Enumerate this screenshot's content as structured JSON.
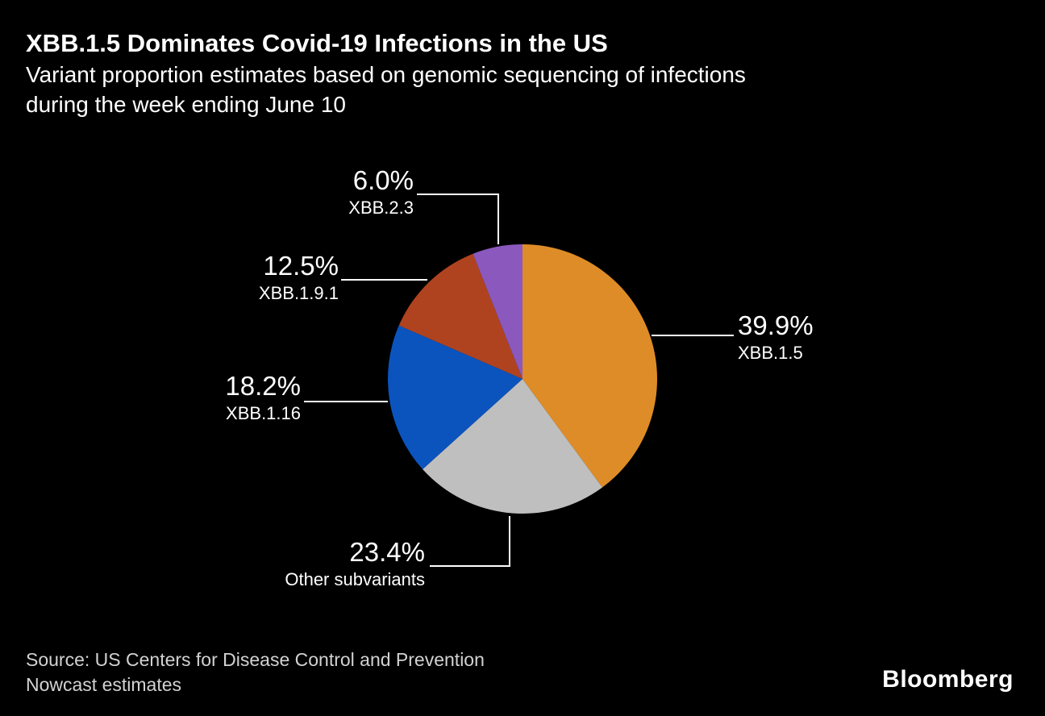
{
  "header": {
    "title": "XBB.1.5 Dominates Covid-19 Infections in the US",
    "subtitle_line1": "Variant proportion estimates based on genomic sequencing of infections",
    "subtitle_line2": "during the week ending June 10"
  },
  "chart_data": {
    "type": "pie",
    "title": "XBB.1.5 Dominates Covid-19 Infections in the US",
    "subtitle": "Variant proportion estimates based on genomic sequencing of infections during the week ending June 10",
    "unit": "%",
    "start_angle_deg": 0,
    "direction": "clockwise",
    "total": 100.0,
    "slices": [
      {
        "name": "XBB.1.5",
        "value": 39.9,
        "pct_label": "39.9%",
        "color": "#DE8C27"
      },
      {
        "name": "Other subvariants",
        "value": 23.4,
        "pct_label": "23.4%",
        "color": "#BFBFBF"
      },
      {
        "name": "XBB.1.16",
        "value": 18.2,
        "pct_label": "18.2%",
        "color": "#0B54BE"
      },
      {
        "name": "XBB.1.9.1",
        "value": 12.5,
        "pct_label": "12.5%",
        "color": "#B0431F"
      },
      {
        "name": "XBB.2.3",
        "value": 6.0,
        "pct_label": "6.0%",
        "color": "#8B58BE"
      }
    ],
    "leader_line_color": "#FFFFFF",
    "background_color": "#000000",
    "legend_position": "callout-labels"
  },
  "footer": {
    "source_line1": "Source: US Centers for Disease Control and Prevention",
    "source_line2": "Nowcast estimates",
    "logo": "Bloomberg"
  }
}
